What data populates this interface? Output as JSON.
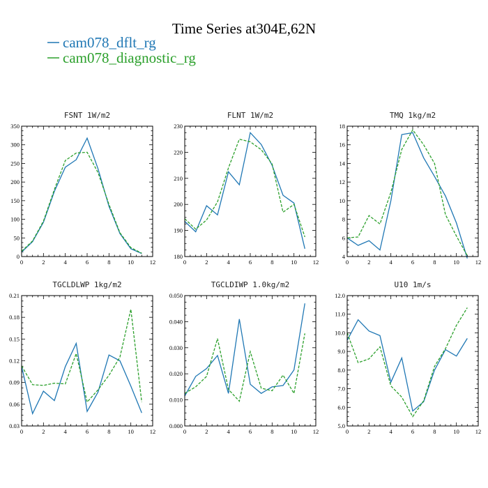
{
  "figure": {
    "title": "Time Series at304E,62N",
    "legend": [
      {
        "label": "cam078_dflt_rg",
        "color": "#1f77b4",
        "dash": "solid"
      },
      {
        "label": "cam078_diagnostic_rg",
        "color": "#2ca02c",
        "dash": "dashed"
      }
    ]
  },
  "chart_data": [
    {
      "type": "line",
      "title": "FSNT   1W/m2",
      "xlim": [
        0,
        12
      ],
      "xticks": [
        0,
        2,
        4,
        6,
        8,
        10,
        12
      ],
      "ylim": [
        0,
        350
      ],
      "yticks": [
        0,
        50,
        100,
        150,
        200,
        250,
        300,
        350
      ],
      "ytick_labels": [
        "0",
        "50",
        "100",
        "150",
        "200",
        "250",
        "300",
        "350"
      ],
      "x": [
        0,
        1,
        2,
        3,
        4,
        5,
        6,
        7,
        8,
        9,
        10,
        11
      ],
      "series": [
        {
          "name": "cam078_dflt_rg",
          "values": [
            12,
            40,
            92,
            175,
            240,
            260,
            318,
            235,
            135,
            62,
            21,
            8
          ]
        },
        {
          "name": "cam078_diagnostic_rg",
          "values": [
            14,
            42,
            95,
            180,
            258,
            278,
            280,
            225,
            140,
            64,
            24,
            9
          ]
        }
      ]
    },
    {
      "type": "line",
      "title": "FLNT   1W/m2",
      "xlim": [
        0,
        12
      ],
      "xticks": [
        0,
        2,
        4,
        6,
        8,
        10,
        12
      ],
      "ylim": [
        180,
        230
      ],
      "yticks": [
        180,
        190,
        200,
        210,
        220,
        230
      ],
      "ytick_labels": [
        "180",
        "190",
        "200",
        "210",
        "220",
        "230"
      ],
      "x": [
        0,
        1,
        2,
        3,
        4,
        5,
        6,
        7,
        8,
        9,
        10,
        11
      ],
      "series": [
        {
          "name": "cam078_dflt_rg",
          "values": [
            193.5,
            189.5,
            199.5,
            196,
            212.5,
            207.5,
            227.5,
            223,
            215,
            203.5,
            200.5,
            183
          ]
        },
        {
          "name": "cam078_diagnostic_rg",
          "values": [
            194.5,
            190.5,
            194,
            201,
            214,
            225,
            224,
            221,
            215.5,
            197,
            200,
            187.5
          ]
        }
      ]
    },
    {
      "type": "line",
      "title": "TMQ   1kg/m2",
      "xlim": [
        0,
        12
      ],
      "xticks": [
        0,
        2,
        4,
        6,
        8,
        10,
        12
      ],
      "ylim": [
        4,
        18
      ],
      "yticks": [
        4,
        6,
        8,
        10,
        12,
        14,
        16,
        18
      ],
      "ytick_labels": [
        "4",
        "6",
        "8",
        "10",
        "12",
        "14",
        "16",
        "18"
      ],
      "x": [
        0,
        1,
        2,
        3,
        4,
        5,
        6,
        7,
        8,
        9,
        10,
        11
      ],
      "series": [
        {
          "name": "cam078_dflt_rg",
          "values": [
            6,
            5.2,
            5.7,
            4.7,
            10,
            17.1,
            17.3,
            14.6,
            12.6,
            10.5,
            7.6,
            3.8
          ]
        },
        {
          "name": "cam078_diagnostic_rg",
          "values": [
            6,
            6.1,
            8.4,
            7.5,
            10.9,
            15.5,
            17.6,
            16,
            14,
            8.5,
            6.2,
            4.1
          ]
        }
      ]
    },
    {
      "type": "line",
      "title": "TGCLDLWP   1kg/m2",
      "xlim": [
        0,
        12
      ],
      "xticks": [
        0,
        2,
        4,
        6,
        8,
        10,
        12
      ],
      "ylim": [
        0.03,
        0.21
      ],
      "yticks": [
        0.03,
        0.06,
        0.09,
        0.12,
        0.15,
        0.18,
        0.21
      ],
      "ytick_labels": [
        "0.03",
        "0.06",
        "0.09",
        "0.12",
        "0.15",
        "0.18",
        "0.21"
      ],
      "x": [
        0,
        1,
        2,
        3,
        4,
        5,
        6,
        7,
        8,
        9,
        10,
        11
      ],
      "series": [
        {
          "name": "cam078_dflt_rg",
          "values": [
            0.112,
            0.047,
            0.078,
            0.065,
            0.112,
            0.144,
            0.05,
            0.077,
            0.128,
            0.12,
            0.085,
            0.048
          ]
        },
        {
          "name": "cam078_diagnostic_rg",
          "values": [
            0.113,
            0.087,
            0.086,
            0.089,
            0.088,
            0.13,
            0.063,
            0.08,
            0.1,
            0.125,
            0.191,
            0.063
          ]
        }
      ]
    },
    {
      "type": "line",
      "title": "TGCLDIWP   1.0kg/m2",
      "xlim": [
        0,
        12
      ],
      "xticks": [
        0,
        2,
        4,
        6,
        8,
        10,
        12
      ],
      "ylim": [
        0,
        0.05
      ],
      "yticks": [
        0,
        0.01,
        0.02,
        0.03,
        0.04,
        0.05
      ],
      "ytick_labels": [
        "0.000",
        "0.010",
        "0.020",
        "0.030",
        "0.040",
        "0.050"
      ],
      "x": [
        0,
        1,
        2,
        3,
        4,
        5,
        6,
        7,
        8,
        9,
        10,
        11
      ],
      "series": [
        {
          "name": "cam078_dflt_rg",
          "values": [
            0.0115,
            0.019,
            0.022,
            0.027,
            0.0125,
            0.041,
            0.016,
            0.0125,
            0.015,
            0.0155,
            0.0215,
            0.047
          ]
        },
        {
          "name": "cam078_diagnostic_rg",
          "values": [
            0.0125,
            0.015,
            0.019,
            0.0335,
            0.014,
            0.0095,
            0.0285,
            0.0145,
            0.0135,
            0.0195,
            0.0125,
            0.0355
          ]
        }
      ]
    },
    {
      "type": "line",
      "title": "U10   1m/s",
      "xlim": [
        0,
        12
      ],
      "xticks": [
        0,
        2,
        4,
        6,
        8,
        10,
        12
      ],
      "ylim": [
        5,
        12
      ],
      "yticks": [
        5,
        6,
        7,
        8,
        9,
        10,
        11,
        12
      ],
      "ytick_labels": [
        "5.0",
        "6.0",
        "7.0",
        "8.0",
        "9.0",
        "10.0",
        "11.0",
        "12.0"
      ],
      "x": [
        0,
        1,
        2,
        3,
        4,
        5,
        6,
        7,
        8,
        9,
        10,
        11
      ],
      "series": [
        {
          "name": "cam078_dflt_rg",
          "values": [
            9.6,
            10.7,
            10.1,
            9.85,
            7.35,
            8.65,
            5.8,
            6.3,
            8,
            9.1,
            8.75,
            9.7
          ]
        },
        {
          "name": "cam078_diagnostic_rg",
          "values": [
            10,
            8.4,
            8.6,
            9.25,
            7.15,
            6.55,
            5.5,
            6.35,
            8.2,
            9.15,
            10.4,
            11.35
          ]
        }
      ]
    }
  ]
}
